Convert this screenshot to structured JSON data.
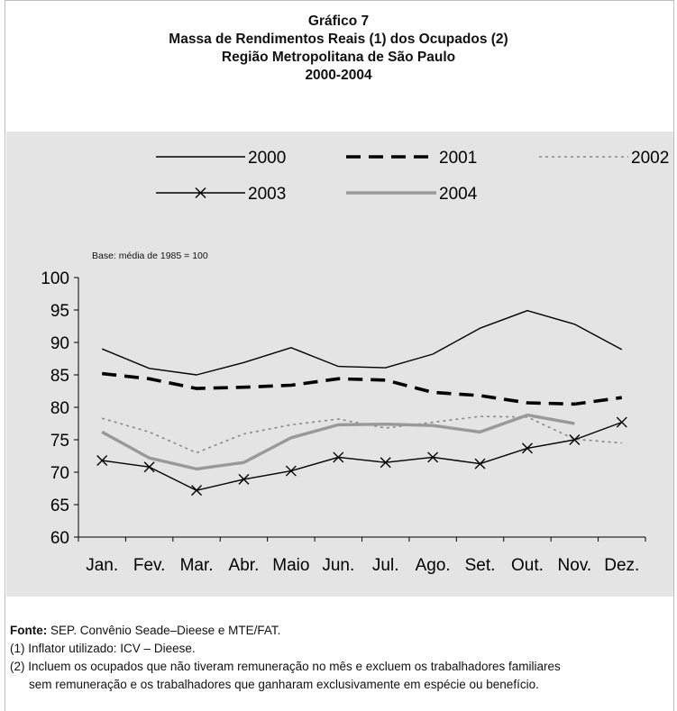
{
  "titles": {
    "line1": "Gráfico 7",
    "line2": "Massa de Rendimentos Reais (1) dos Ocupados (2)",
    "line3": "Região Metropolitana de São Paulo",
    "line4": "2000-2004"
  },
  "chart_data": {
    "type": "line",
    "annotation": "Base: média de 1985 = 100",
    "categories": [
      "Jan.",
      "Fev.",
      "Mar.",
      "Abr.",
      "Maio",
      "Jun.",
      "Jul.",
      "Ago.",
      "Set.",
      "Out.",
      "Nov.",
      "Dez."
    ],
    "ylim": [
      60,
      100
    ],
    "yticks": [
      60,
      65,
      70,
      75,
      80,
      85,
      90,
      95,
      100
    ],
    "legend_position": "top",
    "grid": false,
    "series": [
      {
        "name": "2000",
        "style": "thin-solid",
        "color": "#000000",
        "values": [
          89.0,
          86.0,
          85.0,
          86.9,
          89.2,
          86.3,
          86.1,
          88.2,
          92.2,
          94.9,
          92.8,
          88.9
        ]
      },
      {
        "name": "2001",
        "style": "thick-dashed",
        "color": "#000000",
        "values": [
          85.2,
          84.4,
          82.9,
          83.1,
          83.4,
          84.4,
          84.2,
          82.3,
          81.8,
          80.7,
          80.5,
          81.5
        ]
      },
      {
        "name": "2002",
        "style": "dotted",
        "color": "#888888",
        "values": [
          78.3,
          76.2,
          73.0,
          75.9,
          77.3,
          78.2,
          76.8,
          77.7,
          78.6,
          78.5,
          75.1,
          74.5
        ]
      },
      {
        "name": "2003",
        "style": "solid-x-markers",
        "color": "#000000",
        "values": [
          71.8,
          70.8,
          67.2,
          68.9,
          70.2,
          72.3,
          71.5,
          72.3,
          71.3,
          73.7,
          75.0,
          77.7
        ]
      },
      {
        "name": "2004",
        "style": "thick-solid",
        "color": "#999999",
        "values": [
          76.2,
          72.2,
          70.5,
          71.5,
          75.3,
          77.3,
          77.4,
          77.2,
          76.2,
          78.8,
          77.5,
          null
        ]
      }
    ]
  },
  "notes": {
    "source_label": "Fonte:",
    "source_text": " SEP. Convênio Seade–Dieese e MTE/FAT.",
    "note1": "(1) Inflator utilizado: ICV – Dieese.",
    "note2_line1": "(2) Incluem os ocupados que não tiveram remuneração no mês e excluem os trabalhadores familiares",
    "note2_line2": "sem remuneração e os trabalhadores que ganharam exclusivamente em espécie ou benefício."
  }
}
